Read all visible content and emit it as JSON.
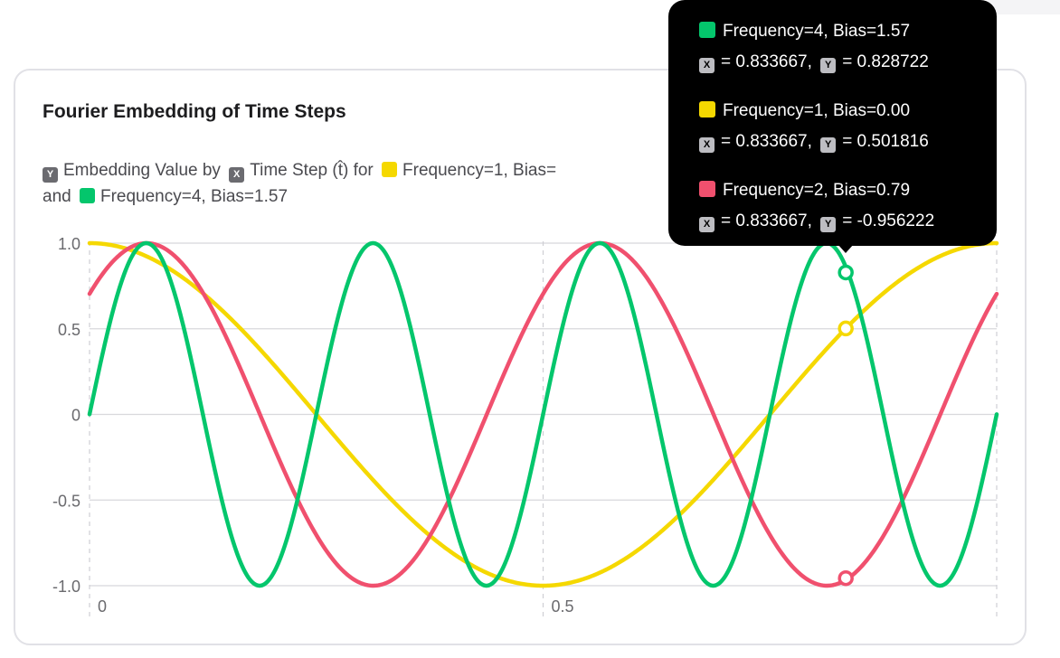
{
  "colors": {
    "freq1": "#f5d800",
    "freq2": "#f0506e",
    "freq4": "#04c66c",
    "grid": "#d8d8dc",
    "vgrid": "#cfcfd4"
  },
  "chart_data": {
    "type": "line",
    "title": "Fourier Embedding of Time Steps",
    "subtitle": {
      "y_chip": "Y",
      "part1": "Embedding Value by",
      "x_chip": "X",
      "part2": "Time Step (t̂) for",
      "part3": "Frequency=1, Bias=",
      "part4": "and",
      "part5": "Frequency=4, Bias=1.57"
    },
    "xlim": [
      0,
      1
    ],
    "ylim": [
      -1,
      1
    ],
    "y_ticks": [
      {
        "value": 1.0,
        "label": "1.0"
      },
      {
        "value": 0.5,
        "label": "0.5"
      },
      {
        "value": 0,
        "label": "0"
      },
      {
        "value": -0.5,
        "label": "-0.5"
      },
      {
        "value": -1.0,
        "label": "-1.0"
      }
    ],
    "x_ticks": [
      {
        "value": 0,
        "label": "0"
      },
      {
        "value": 0.5,
        "label": "0.5"
      }
    ],
    "x_grid": [
      0,
      0.5,
      1.0
    ],
    "series": [
      {
        "name": "Frequency=1, Bias=0.00",
        "frequency": 1,
        "bias": 0.0,
        "color_key": "freq1"
      },
      {
        "name": "Frequency=2, Bias=0.79",
        "frequency": 2,
        "bias": 0.79,
        "color_key": "freq2"
      },
      {
        "name": "Frequency=4, Bias=1.57",
        "frequency": 4,
        "bias": 1.57,
        "color_key": "freq4"
      }
    ],
    "highlight_x": 0.833667,
    "highlight_points": [
      {
        "series": "Frequency=4, Bias=1.57",
        "x": 0.833667,
        "y": 0.828722,
        "color_key": "freq4"
      },
      {
        "series": "Frequency=1, Bias=0.00",
        "x": 0.833667,
        "y": 0.501816,
        "color_key": "freq1"
      },
      {
        "series": "Frequency=2, Bias=0.79",
        "x": 0.833667,
        "y": -0.956222,
        "color_key": "freq2"
      }
    ]
  },
  "tooltip": {
    "axis_x": "X",
    "axis_y": "Y",
    "groups": [
      {
        "label": "Frequency=4, Bias=1.57",
        "color_key": "freq4",
        "x_text": "= 0.833667,",
        "y_text": "= 0.828722"
      },
      {
        "label": "Frequency=1, Bias=0.00",
        "color_key": "freq1",
        "x_text": "= 0.833667,",
        "y_text": "= 0.501816"
      },
      {
        "label": "Frequency=2, Bias=0.79",
        "color_key": "freq2",
        "x_text": "= 0.833667,",
        "y_text": "= -0.956222"
      }
    ]
  }
}
